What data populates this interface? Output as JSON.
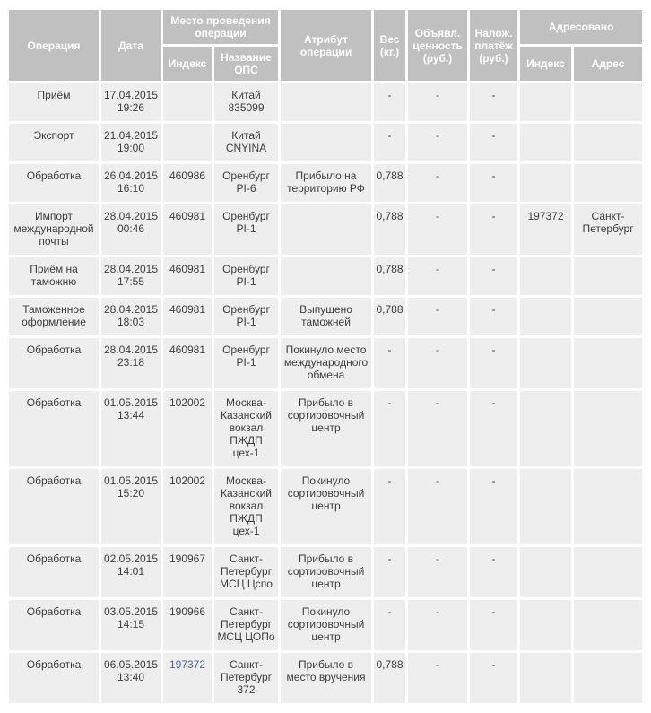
{
  "colors": {
    "header_bg": "#c0c0c0",
    "header_text": "#ffffff",
    "cell_bg": "#eeeeee",
    "body_text": "#3d3d3d",
    "link": "#4f6491",
    "page_bg": "#ffffff"
  },
  "table": {
    "header": {
      "operation": "Операция",
      "date": "Дата",
      "place_group": "Место проведения операции",
      "place_index": "Индекс",
      "place_ops_name": "Название ОПС",
      "attribute": "Атрибут операции",
      "weight": "Вес (кг.)",
      "declared_value": "Объявл. ценность (руб.)",
      "cod": "Налож. платёж (руб.)",
      "addressed_group": "Адресовано",
      "addressed_index": "Индекс",
      "addressed_address": "Адрес"
    },
    "rows": [
      {
        "operation": "Приём",
        "date": "17.04.2015",
        "time": "19:26",
        "index": "",
        "index_is_link": false,
        "ops_name": "Китай 835099",
        "attribute": "",
        "weight": "-",
        "declared_value": "-",
        "cod": "-",
        "addr_index": "",
        "address": ""
      },
      {
        "operation": "Экспорт",
        "date": "21.04.2015",
        "time": "19:00",
        "index": "",
        "index_is_link": false,
        "ops_name": "Китай CNYINA",
        "attribute": "",
        "weight": "-",
        "declared_value": "-",
        "cod": "-",
        "addr_index": "",
        "address": ""
      },
      {
        "operation": "Обработка",
        "date": "26.04.2015",
        "time": "16:10",
        "index": "460986",
        "index_is_link": false,
        "ops_name": "Оренбург PI-6",
        "attribute": "Прибыло на территорию РФ",
        "weight": "0,788",
        "declared_value": "-",
        "cod": "-",
        "addr_index": "",
        "address": ""
      },
      {
        "operation": "Импорт международной почты",
        "date": "28.04.2015",
        "time": "00:46",
        "index": "460981",
        "index_is_link": false,
        "ops_name": "Оренбург PI-1",
        "attribute": "",
        "weight": "0,788",
        "declared_value": "-",
        "cod": "-",
        "addr_index": "197372",
        "address": "Санкт-Петербург"
      },
      {
        "operation": "Приём на таможню",
        "date": "28.04.2015",
        "time": "17:55",
        "index": "460981",
        "index_is_link": false,
        "ops_name": "Оренбург PI-1",
        "attribute": "",
        "weight": "0,788",
        "declared_value": "-",
        "cod": "-",
        "addr_index": "",
        "address": ""
      },
      {
        "operation": "Таможенное оформление",
        "date": "28.04.2015",
        "time": "18:03",
        "index": "460981",
        "index_is_link": false,
        "ops_name": "Оренбург PI-1",
        "attribute": "Выпущено таможней",
        "weight": "0,788",
        "declared_value": "-",
        "cod": "-",
        "addr_index": "",
        "address": ""
      },
      {
        "operation": "Обработка",
        "date": "28.04.2015",
        "time": "23:18",
        "index": "460981",
        "index_is_link": false,
        "ops_name": "Оренбург PI-1",
        "attribute": "Покинуло место международного обмена",
        "weight": "-",
        "declared_value": "-",
        "cod": "-",
        "addr_index": "",
        "address": ""
      },
      {
        "operation": "Обработка",
        "date": "01.05.2015",
        "time": "13:44",
        "index": "102002",
        "index_is_link": false,
        "ops_name": "Москва-Казанский вокзал ПЖДП цех-1",
        "attribute": "Прибыло в сортировочный центр",
        "weight": "-",
        "declared_value": "-",
        "cod": "-",
        "addr_index": "",
        "address": ""
      },
      {
        "operation": "Обработка",
        "date": "01.05.2015",
        "time": "15:20",
        "index": "102002",
        "index_is_link": false,
        "ops_name": "Москва-Казанский вокзал ПЖДП цех-1",
        "attribute": "Покинуло сортировочный центр",
        "weight": "-",
        "declared_value": "-",
        "cod": "-",
        "addr_index": "",
        "address": ""
      },
      {
        "operation": "Обработка",
        "date": "02.05.2015",
        "time": "14:01",
        "index": "190967",
        "index_is_link": false,
        "ops_name": "Санкт-Петербург МСЦ Цспо",
        "attribute": "Прибыло в сортировочный центр",
        "weight": "-",
        "declared_value": "-",
        "cod": "-",
        "addr_index": "",
        "address": ""
      },
      {
        "operation": "Обработка",
        "date": "03.05.2015",
        "time": "14:15",
        "index": "190966",
        "index_is_link": false,
        "ops_name": "Санкт-Петербург МСЦ ЦОПо",
        "attribute": "Покинуло сортировочный центр",
        "weight": "-",
        "declared_value": "-",
        "cod": "-",
        "addr_index": "",
        "address": ""
      },
      {
        "operation": "Обработка",
        "date": "06.05.2015",
        "time": "13:40",
        "index": "197372",
        "index_is_link": true,
        "ops_name": "Санкт-Петербург 372",
        "attribute": "Прибыло в место вручения",
        "weight": "0,788",
        "declared_value": "-",
        "cod": "-",
        "addr_index": "",
        "address": ""
      }
    ]
  }
}
